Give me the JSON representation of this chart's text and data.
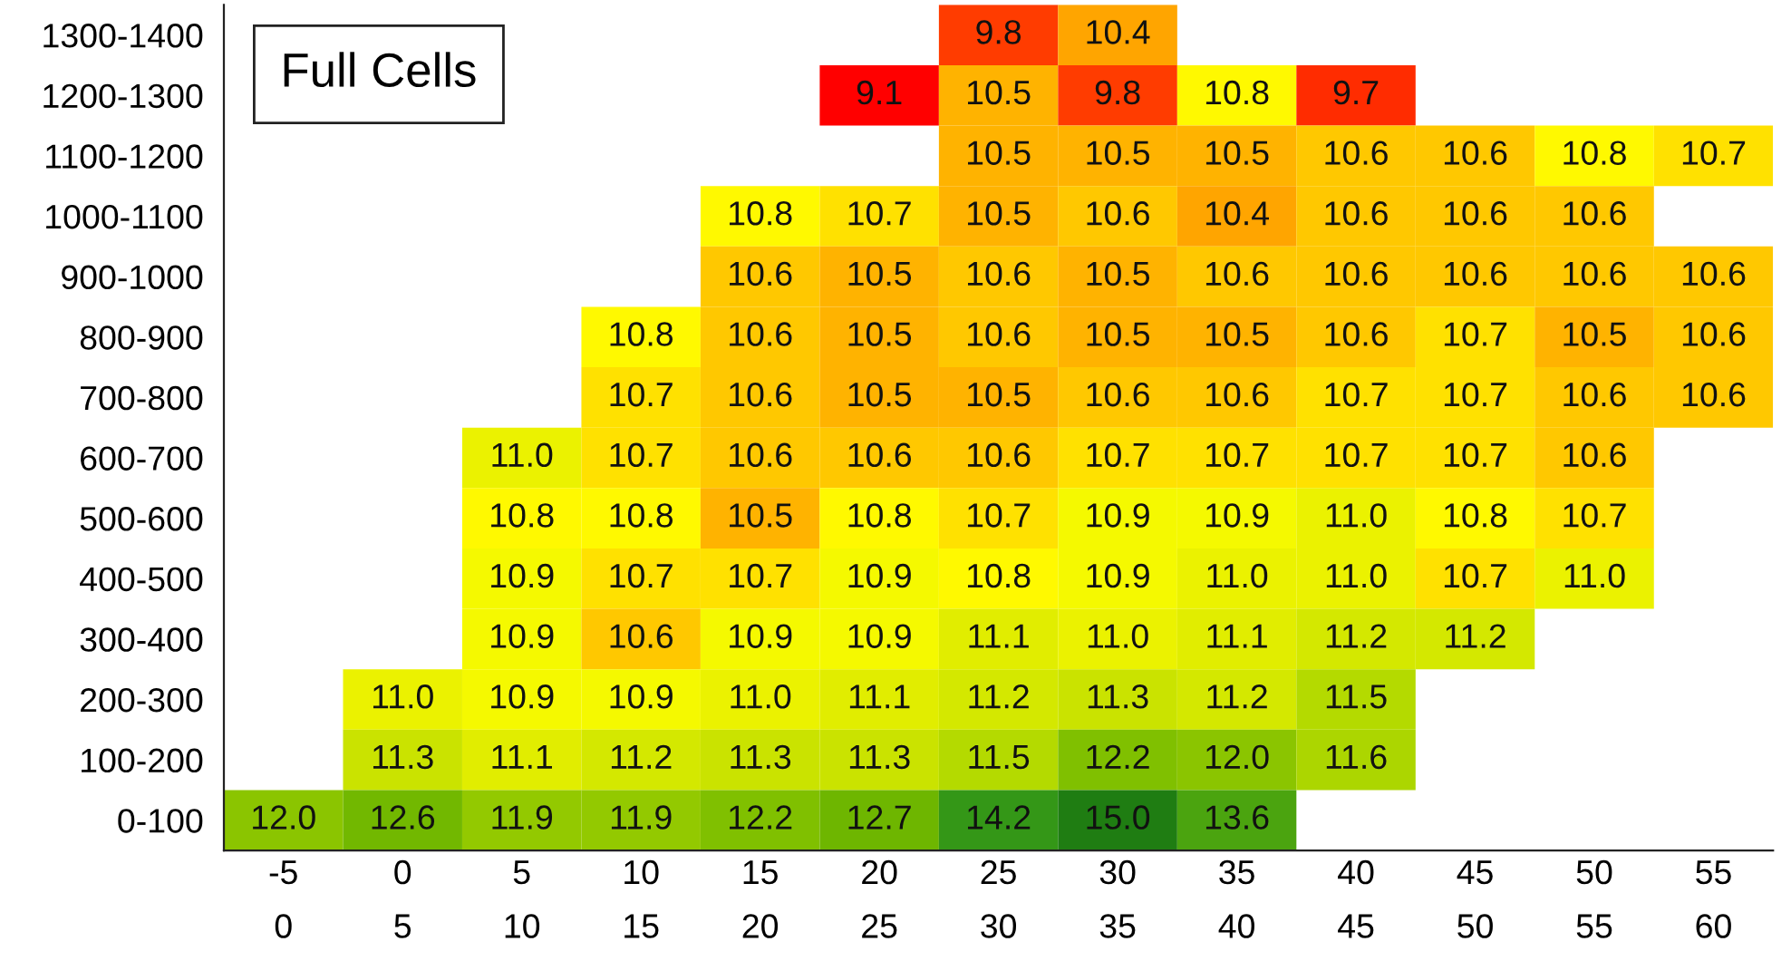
{
  "chart_data": {
    "type": "heatmap",
    "categories": [
      "-5\n0",
      "0\n5",
      "5\n10",
      "10\n15",
      "15\n20",
      "20\n25",
      "25\n30",
      "30\n35",
      "35\n40",
      "40\n45",
      "45\n50",
      "50\n55",
      "55\n60"
    ],
    "y_categories": [
      "1300-1400",
      "1200-1300",
      "1100-1200",
      "1000-1100",
      "900-1000",
      "800-900",
      "700-800",
      "600-700",
      "500-600",
      "400-500",
      "300-400",
      "200-300",
      "100-200",
      "0-100"
    ],
    "cells": [
      [
        null,
        null,
        null,
        null,
        null,
        null,
        9.8,
        10.4,
        null,
        null,
        null,
        null,
        null
      ],
      [
        null,
        null,
        null,
        null,
        null,
        9.1,
        10.5,
        9.8,
        10.8,
        9.7,
        null,
        null,
        null
      ],
      [
        null,
        null,
        null,
        null,
        null,
        null,
        10.5,
        10.5,
        10.5,
        10.6,
        10.6,
        10.8,
        10.7
      ],
      [
        null,
        null,
        null,
        null,
        10.8,
        10.7,
        10.5,
        10.6,
        10.4,
        10.6,
        10.6,
        10.6,
        null
      ],
      [
        null,
        null,
        null,
        null,
        10.6,
        10.5,
        10.6,
        10.5,
        10.6,
        10.6,
        10.6,
        10.6,
        10.6
      ],
      [
        null,
        null,
        null,
        10.8,
        10.6,
        10.5,
        10.6,
        10.5,
        10.5,
        10.6,
        10.7,
        10.5,
        10.6
      ],
      [
        null,
        null,
        null,
        10.7,
        10.6,
        10.5,
        10.5,
        10.6,
        10.6,
        10.7,
        10.7,
        10.6,
        10.6
      ],
      [
        null,
        null,
        11.0,
        10.7,
        10.6,
        10.6,
        10.6,
        10.7,
        10.7,
        10.7,
        10.7,
        10.6,
        null
      ],
      [
        null,
        null,
        10.8,
        10.8,
        10.5,
        10.8,
        10.7,
        10.9,
        10.9,
        11.0,
        10.8,
        10.7,
        null
      ],
      [
        null,
        null,
        10.9,
        10.7,
        10.7,
        10.9,
        10.8,
        10.9,
        11.0,
        11.0,
        10.7,
        11.0,
        null
      ],
      [
        null,
        null,
        10.9,
        10.6,
        10.9,
        10.9,
        11.1,
        11.0,
        11.1,
        11.2,
        11.2,
        null,
        null
      ],
      [
        null,
        11.0,
        10.9,
        10.9,
        11.0,
        11.1,
        11.2,
        11.3,
        11.2,
        11.5,
        null,
        null,
        null
      ],
      [
        null,
        11.3,
        11.1,
        11.2,
        11.3,
        11.3,
        11.5,
        12.2,
        12.0,
        11.6,
        null,
        null,
        null
      ],
      [
        12.0,
        12.6,
        11.9,
        11.9,
        12.2,
        12.7,
        14.2,
        15.0,
        13.6,
        null,
        null,
        null,
        null
      ]
    ],
    "cell_labels": [
      [
        null,
        null,
        null,
        null,
        null,
        null,
        "9.8",
        "10.4",
        null,
        null,
        null,
        null,
        null
      ],
      [
        null,
        null,
        null,
        null,
        null,
        "9.1",
        "10.5",
        "9.8",
        "10.8",
        "9.7",
        null,
        null,
        null
      ],
      [
        null,
        null,
        null,
        null,
        null,
        null,
        "10.5",
        "10.5",
        "10.5",
        "10.6",
        "10.6",
        "10.8",
        "10.7"
      ],
      [
        null,
        null,
        null,
        null,
        "10.8",
        "10.7",
        "10.5",
        "10.6",
        "10.4",
        "10.6",
        "10.6",
        "10.6",
        null
      ],
      [
        null,
        null,
        null,
        null,
        "10.6",
        "10.5",
        "10.6",
        "10.5",
        "10.6",
        "10.6",
        "10.6",
        "10.6",
        "10.6"
      ],
      [
        null,
        null,
        null,
        "10.8",
        "10.6",
        "10.5",
        "10.6",
        "10.5",
        "10.5",
        "10.6",
        "10.7",
        "10.5",
        "10.6"
      ],
      [
        null,
        null,
        null,
        "10.7",
        "10.6",
        "10.5",
        "10.5",
        "10.6",
        "10.6",
        "10.7",
        "10.7",
        "10.6",
        "10.6"
      ],
      [
        null,
        null,
        "11.0",
        "10.7",
        "10.6",
        "10.6",
        "10.6",
        "10.7",
        "10.7",
        "10.7",
        "10.7",
        "10.6",
        null
      ],
      [
        null,
        null,
        "10.8",
        "10.8",
        "10.5",
        "10.8",
        "10.7",
        "10.9",
        "10.9",
        "11.0",
        "10.8",
        "10.7",
        null
      ],
      [
        null,
        null,
        "10.9",
        "10.7",
        "10.7",
        "10.9",
        "10.8",
        "10.9",
        "11.0",
        "11.0",
        "10.7",
        "11.0",
        null
      ],
      [
        null,
        null,
        "10.9",
        "10.6",
        "10.9",
        "10.9",
        "11.1",
        "11.0",
        "11.1",
        "11.2",
        "11.2",
        null,
        null
      ],
      [
        null,
        "11.0",
        "10.9",
        "10.9",
        "11.0",
        "11.1",
        "11.2",
        "11.3",
        "11.2",
        "11.5",
        null,
        null,
        null
      ],
      [
        null,
        "11.3",
        "11.1",
        "11.2",
        "11.3",
        "11.3",
        "11.5",
        "12.2",
        "12.0",
        "11.6",
        null,
        null,
        null
      ],
      [
        "12.0",
        "12.6",
        "11.9",
        "11.9",
        "12.2",
        "12.7",
        "14.2",
        "15.0",
        "13.6",
        null,
        null,
        null,
        null
      ]
    ],
    "annotations": [
      "Full Cells"
    ]
  }
}
